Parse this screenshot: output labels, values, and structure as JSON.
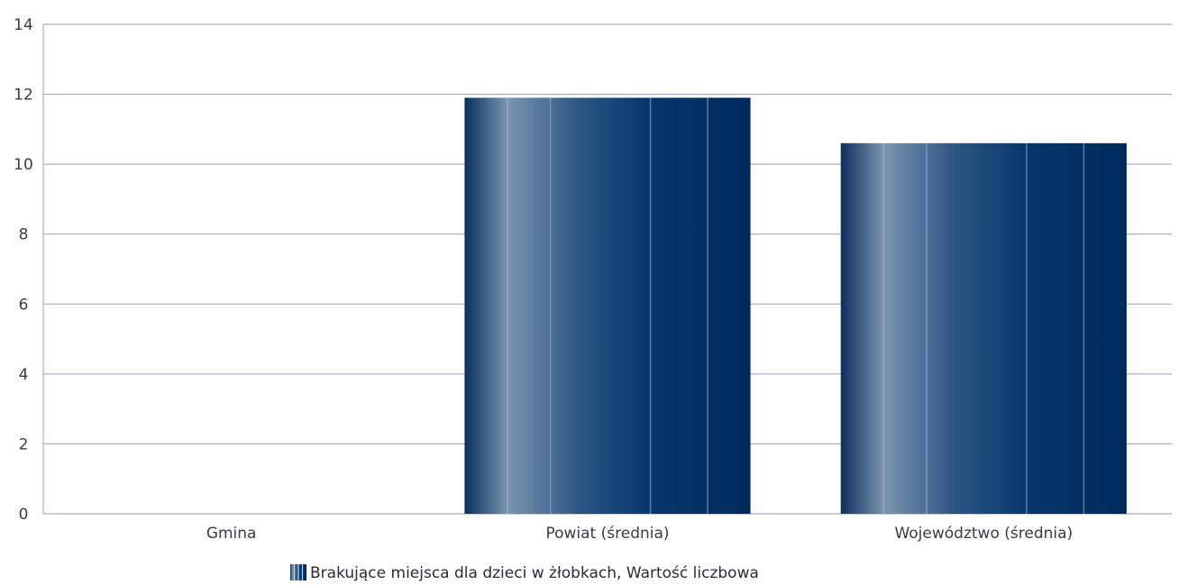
{
  "chart_data": {
    "type": "bar",
    "categories": [
      "Gmina",
      "Powiat (średnia)",
      "Województwo (średnia)"
    ],
    "series": [
      {
        "name": "Brakujące miejsca dla dzieci w żłobkach, Wartość liczbowa",
        "values": [
          0,
          11.9,
          10.6
        ]
      }
    ],
    "title": "",
    "xlabel": "",
    "ylabel": "",
    "ylim": [
      0,
      14
    ],
    "yticks": [
      0,
      2,
      4,
      6,
      8,
      10,
      12,
      14
    ],
    "grid": true,
    "legend_position": "bottom-center",
    "colors": {
      "bar_dark": "#002a5c",
      "bar_light": "#7a95b0",
      "grid": "#9a9ab0",
      "axis_text": "#3a3a4a"
    }
  }
}
